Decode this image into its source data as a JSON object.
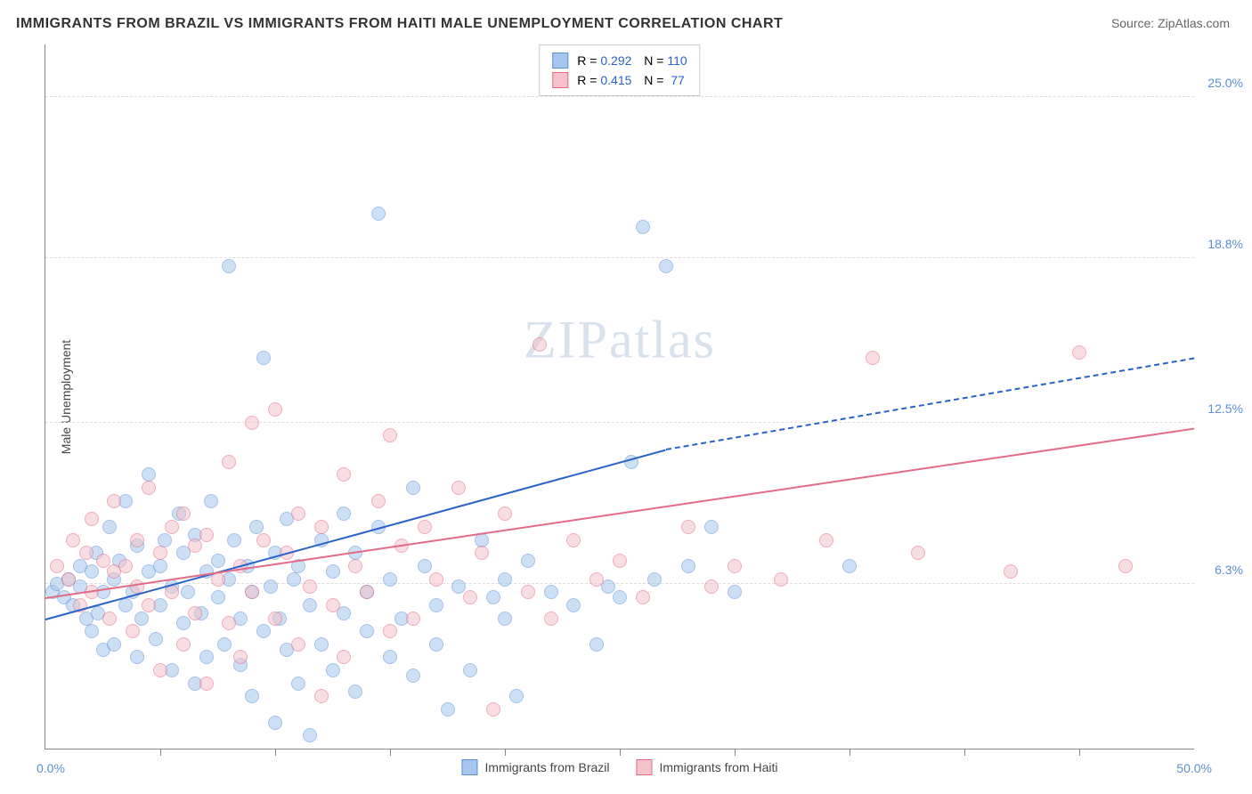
{
  "title": "IMMIGRANTS FROM BRAZIL VS IMMIGRANTS FROM HAITI MALE UNEMPLOYMENT CORRELATION CHART",
  "source_label": "Source: ",
  "source_value": "ZipAtlas.com",
  "ylabel": "Male Unemployment",
  "watermark": "ZIPatlas",
  "chart": {
    "type": "scatter",
    "xlim": [
      0,
      50
    ],
    "ylim": [
      0,
      27
    ],
    "x_min_label": "0.0%",
    "x_max_label": "50.0%",
    "y_ticks": [
      6.3,
      12.5,
      18.8,
      25.0
    ],
    "y_tick_labels": [
      "6.3%",
      "12.5%",
      "18.8%",
      "25.0%"
    ],
    "x_ticks": [
      5,
      10,
      15,
      20,
      25,
      30,
      35,
      40,
      45
    ],
    "grid_color": "#dddddd",
    "background_color": "#ffffff",
    "axis_color": "#888888",
    "series": [
      {
        "name": "Immigrants from Brazil",
        "color_fill": "#a6c6ee",
        "color_stroke": "#5b8fd6",
        "r": 0.292,
        "n": 110,
        "trend": {
          "x0": 0,
          "y0": 5.0,
          "x1": 27,
          "y1": 11.5,
          "x_dash_to": 50,
          "y_dash_to": 15.0,
          "color": "#2a62c9"
        },
        "points": [
          [
            0.3,
            6.0
          ],
          [
            0.5,
            6.3
          ],
          [
            0.8,
            5.8
          ],
          [
            1.0,
            6.5
          ],
          [
            1.2,
            5.5
          ],
          [
            1.5,
            7.0
          ],
          [
            1.5,
            6.2
          ],
          [
            1.8,
            5.0
          ],
          [
            2.0,
            6.8
          ],
          [
            2.0,
            4.5
          ],
          [
            2.2,
            7.5
          ],
          [
            2.3,
            5.2
          ],
          [
            2.5,
            6.0
          ],
          [
            2.5,
            3.8
          ],
          [
            2.8,
            8.5
          ],
          [
            3.0,
            6.5
          ],
          [
            3.0,
            4.0
          ],
          [
            3.2,
            7.2
          ],
          [
            3.5,
            5.5
          ],
          [
            3.5,
            9.5
          ],
          [
            3.8,
            6.0
          ],
          [
            4.0,
            3.5
          ],
          [
            4.0,
            7.8
          ],
          [
            4.2,
            5.0
          ],
          [
            4.5,
            6.8
          ],
          [
            4.5,
            10.5
          ],
          [
            4.8,
            4.2
          ],
          [
            5.0,
            7.0
          ],
          [
            5.0,
            5.5
          ],
          [
            5.2,
            8.0
          ],
          [
            5.5,
            3.0
          ],
          [
            5.5,
            6.2
          ],
          [
            5.8,
            9.0
          ],
          [
            6.0,
            4.8
          ],
          [
            6.0,
            7.5
          ],
          [
            6.2,
            6.0
          ],
          [
            6.5,
            2.5
          ],
          [
            6.5,
            8.2
          ],
          [
            6.8,
            5.2
          ],
          [
            7.0,
            6.8
          ],
          [
            7.0,
            3.5
          ],
          [
            7.2,
            9.5
          ],
          [
            7.5,
            5.8
          ],
          [
            7.5,
            7.2
          ],
          [
            7.8,
            4.0
          ],
          [
            8.0,
            6.5
          ],
          [
            8.0,
            18.5
          ],
          [
            8.2,
            8.0
          ],
          [
            8.5,
            5.0
          ],
          [
            8.5,
            3.2
          ],
          [
            8.8,
            7.0
          ],
          [
            9.0,
            6.0
          ],
          [
            9.0,
            2.0
          ],
          [
            9.2,
            8.5
          ],
          [
            9.5,
            4.5
          ],
          [
            9.5,
            15.0
          ],
          [
            9.8,
            6.2
          ],
          [
            10.0,
            1.0
          ],
          [
            10.0,
            7.5
          ],
          [
            10.2,
            5.0
          ],
          [
            10.5,
            3.8
          ],
          [
            10.5,
            8.8
          ],
          [
            10.8,
            6.5
          ],
          [
            11.0,
            2.5
          ],
          [
            11.0,
            7.0
          ],
          [
            11.5,
            5.5
          ],
          [
            11.5,
            0.5
          ],
          [
            12.0,
            8.0
          ],
          [
            12.0,
            4.0
          ],
          [
            12.5,
            6.8
          ],
          [
            12.5,
            3.0
          ],
          [
            13.0,
            9.0
          ],
          [
            13.0,
            5.2
          ],
          [
            13.5,
            2.2
          ],
          [
            13.5,
            7.5
          ],
          [
            14.0,
            6.0
          ],
          [
            14.0,
            4.5
          ],
          [
            14.5,
            20.5
          ],
          [
            14.5,
            8.5
          ],
          [
            15.0,
            3.5
          ],
          [
            15.0,
            6.5
          ],
          [
            15.5,
            5.0
          ],
          [
            16.0,
            10.0
          ],
          [
            16.0,
            2.8
          ],
          [
            16.5,
            7.0
          ],
          [
            17.0,
            5.5
          ],
          [
            17.0,
            4.0
          ],
          [
            17.5,
            1.5
          ],
          [
            18.0,
            6.2
          ],
          [
            18.5,
            3.0
          ],
          [
            19.0,
            8.0
          ],
          [
            19.5,
            5.8
          ],
          [
            20.0,
            5.0
          ],
          [
            20.0,
            6.5
          ],
          [
            20.5,
            2.0
          ],
          [
            21.0,
            7.2
          ],
          [
            22.0,
            6.0
          ],
          [
            23.0,
            5.5
          ],
          [
            24.0,
            4.0
          ],
          [
            24.5,
            6.2
          ],
          [
            25.0,
            5.8
          ],
          [
            25.5,
            11.0
          ],
          [
            26.0,
            20.0
          ],
          [
            26.5,
            6.5
          ],
          [
            27.0,
            18.5
          ],
          [
            28.0,
            7.0
          ],
          [
            29.0,
            8.5
          ],
          [
            30.0,
            6.0
          ],
          [
            35.0,
            7.0
          ]
        ]
      },
      {
        "name": "Immigrants from Haiti",
        "color_fill": "#f3c2cb",
        "color_stroke": "#e46a87",
        "r": 0.415,
        "n": 77,
        "trend": {
          "x0": 0,
          "y0": 5.8,
          "x1": 50,
          "y1": 12.3,
          "color": "#e46a87"
        },
        "points": [
          [
            0.5,
            7.0
          ],
          [
            1.0,
            6.5
          ],
          [
            1.2,
            8.0
          ],
          [
            1.5,
            5.5
          ],
          [
            1.8,
            7.5
          ],
          [
            2.0,
            6.0
          ],
          [
            2.0,
            8.8
          ],
          [
            2.5,
            7.2
          ],
          [
            2.8,
            5.0
          ],
          [
            3.0,
            6.8
          ],
          [
            3.0,
            9.5
          ],
          [
            3.5,
            7.0
          ],
          [
            3.8,
            4.5
          ],
          [
            4.0,
            8.0
          ],
          [
            4.0,
            6.2
          ],
          [
            4.5,
            10.0
          ],
          [
            4.5,
            5.5
          ],
          [
            5.0,
            7.5
          ],
          [
            5.0,
            3.0
          ],
          [
            5.5,
            8.5
          ],
          [
            5.5,
            6.0
          ],
          [
            6.0,
            9.0
          ],
          [
            6.0,
            4.0
          ],
          [
            6.5,
            7.8
          ],
          [
            6.5,
            5.2
          ],
          [
            7.0,
            8.2
          ],
          [
            7.0,
            2.5
          ],
          [
            7.5,
            6.5
          ],
          [
            8.0,
            11.0
          ],
          [
            8.0,
            4.8
          ],
          [
            8.5,
            7.0
          ],
          [
            8.5,
            3.5
          ],
          [
            9.0,
            12.5
          ],
          [
            9.0,
            6.0
          ],
          [
            9.5,
            8.0
          ],
          [
            10.0,
            5.0
          ],
          [
            10.0,
            13.0
          ],
          [
            10.5,
            7.5
          ],
          [
            11.0,
            4.0
          ],
          [
            11.0,
            9.0
          ],
          [
            11.5,
            6.2
          ],
          [
            12.0,
            2.0
          ],
          [
            12.0,
            8.5
          ],
          [
            12.5,
            5.5
          ],
          [
            13.0,
            10.5
          ],
          [
            13.0,
            3.5
          ],
          [
            13.5,
            7.0
          ],
          [
            14.0,
            6.0
          ],
          [
            14.5,
            9.5
          ],
          [
            15.0,
            4.5
          ],
          [
            15.0,
            12.0
          ],
          [
            15.5,
            7.8
          ],
          [
            16.0,
            5.0
          ],
          [
            16.5,
            8.5
          ],
          [
            17.0,
            6.5
          ],
          [
            18.0,
            10.0
          ],
          [
            18.5,
            5.8
          ],
          [
            19.0,
            7.5
          ],
          [
            19.5,
            1.5
          ],
          [
            20.0,
            9.0
          ],
          [
            21.0,
            6.0
          ],
          [
            21.5,
            15.5
          ],
          [
            22.0,
            5.0
          ],
          [
            23.0,
            8.0
          ],
          [
            24.0,
            6.5
          ],
          [
            25.0,
            7.2
          ],
          [
            26.0,
            5.8
          ],
          [
            28.0,
            8.5
          ],
          [
            29.0,
            6.2
          ],
          [
            30.0,
            7.0
          ],
          [
            32.0,
            6.5
          ],
          [
            34.0,
            8.0
          ],
          [
            36.0,
            15.0
          ],
          [
            38.0,
            7.5
          ],
          [
            42.0,
            6.8
          ],
          [
            45.0,
            15.2
          ],
          [
            47.0,
            7.0
          ]
        ]
      }
    ]
  },
  "legend": {
    "r_label": "R = ",
    "n_label": "N = "
  }
}
